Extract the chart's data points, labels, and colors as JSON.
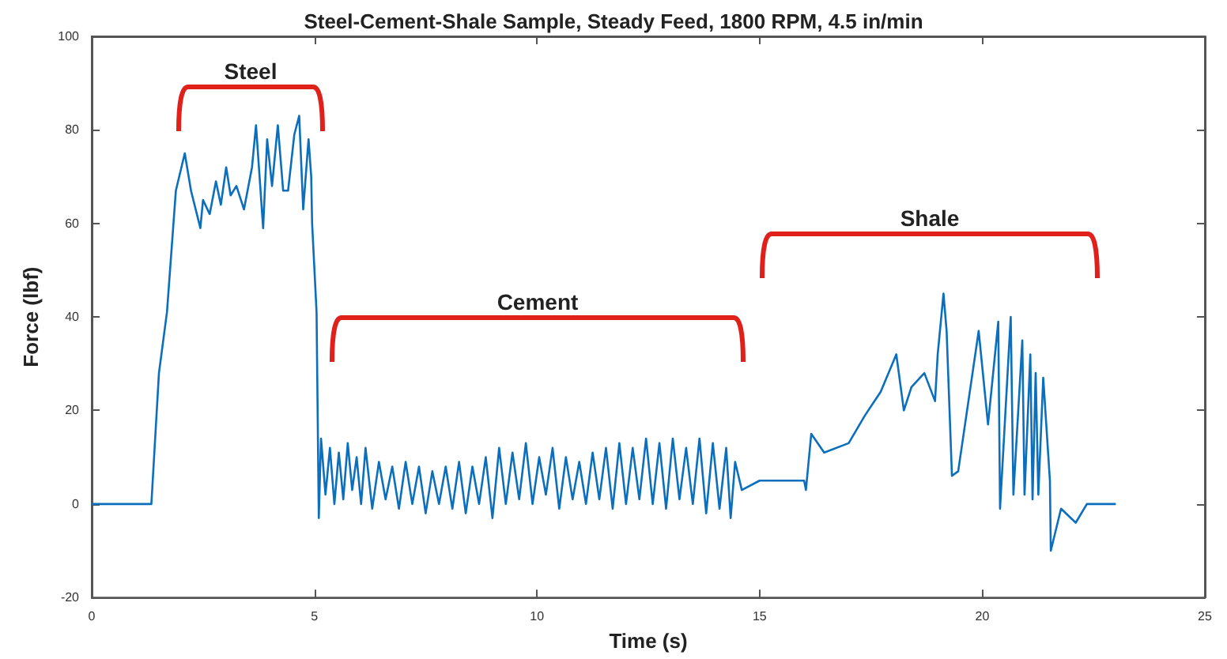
{
  "chart_data": {
    "type": "line",
    "title": "Steel-Cement-Shale Sample, Steady Feed, 1800 RPM, 4.5 in/min",
    "xlabel": "Time (s)",
    "ylabel": "Force (lbf)",
    "xlim": [
      0,
      25
    ],
    "xticks": [
      0,
      5,
      10,
      15,
      20,
      25
    ],
    "ylim": [
      -20,
      100
    ],
    "yticks": [
      -20,
      0,
      20,
      40,
      60,
      80,
      100
    ],
    "marker": "none",
    "line_style": "solid",
    "series": [
      {
        "color": "#0b6fbd",
        "x": [
          0,
          1.34,
          1.51,
          1.69,
          1.89,
          2.09,
          2.23,
          2.44,
          2.5,
          2.65,
          2.79,
          2.9,
          3.02,
          3.12,
          3.25,
          3.42,
          3.6,
          3.69,
          3.85,
          3.94,
          4.05,
          4.18,
          4.3,
          4.41,
          4.55,
          4.66,
          4.75,
          4.87,
          4.93,
          4.95,
          5.05,
          5.1,
          5.15,
          5.25,
          5.35,
          5.45,
          5.55,
          5.65,
          5.75,
          5.85,
          5.95,
          6.05,
          6.15,
          6.3,
          6.45,
          6.6,
          6.75,
          6.9,
          7.05,
          7.2,
          7.35,
          7.5,
          7.65,
          7.8,
          7.95,
          8.1,
          8.25,
          8.4,
          8.55,
          8.7,
          8.85,
          9.0,
          9.15,
          9.3,
          9.45,
          9.6,
          9.75,
          9.9,
          10.05,
          10.2,
          10.35,
          10.5,
          10.65,
          10.8,
          10.95,
          11.1,
          11.25,
          11.4,
          11.55,
          11.7,
          11.85,
          12.0,
          12.15,
          12.3,
          12.45,
          12.6,
          12.75,
          12.9,
          13.05,
          13.2,
          13.35,
          13.5,
          13.65,
          13.8,
          13.95,
          14.1,
          14.25,
          14.35,
          14.45,
          14.6,
          15.0,
          15.5,
          16.0,
          16.04,
          16.16,
          16.45,
          17.0,
          17.37,
          17.72,
          18.07,
          18.24,
          18.41,
          18.7,
          18.94,
          19.0,
          19.13,
          19.2,
          19.32,
          19.46,
          19.92,
          20.13,
          20.36,
          20.4,
          20.64,
          20.7,
          20.9,
          20.95,
          21.08,
          21.13,
          21.2,
          21.26,
          21.37,
          21.52,
          21.54,
          21.77,
          22.1,
          22.35,
          23.0
        ],
        "values": [
          0,
          0,
          28,
          41,
          67,
          75,
          67,
          59,
          65,
          62,
          69,
          64,
          72,
          66,
          68,
          63,
          72,
          81,
          59,
          78,
          68,
          81,
          67,
          67,
          79,
          83,
          63,
          78,
          70,
          60,
          41,
          -3,
          14,
          2,
          12,
          0,
          11,
          1,
          13,
          3,
          10,
          0,
          12,
          -1,
          9,
          1,
          8,
          -1,
          9,
          0,
          8,
          -2,
          7,
          0,
          8,
          -1,
          9,
          -2,
          8,
          0,
          10,
          -3,
          12,
          0,
          11,
          1,
          13,
          0,
          10,
          2,
          12,
          -1,
          10,
          1,
          9,
          0,
          11,
          1,
          12,
          -1,
          13,
          0,
          12,
          1,
          14,
          0,
          13,
          -1,
          14,
          1,
          12,
          0,
          14,
          -2,
          13,
          -1,
          12,
          -3,
          9,
          3,
          5,
          5,
          5,
          3,
          15,
          11,
          13,
          19,
          24,
          32,
          20,
          25,
          28,
          22,
          32,
          45,
          37,
          6,
          7,
          37,
          17,
          39,
          -1,
          40,
          2,
          35,
          2,
          32,
          1,
          28,
          2,
          27,
          5,
          -10,
          -1,
          -4,
          0,
          0
        ]
      }
    ],
    "annotations": [
      "Steel",
      "Cement",
      "Shale"
    ]
  }
}
